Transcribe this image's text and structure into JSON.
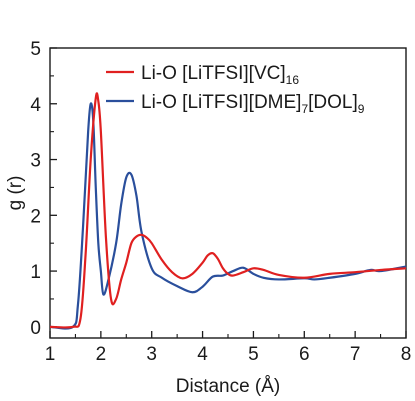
{
  "chart_data": {
    "type": "line",
    "xlabel": "Distance (Å)",
    "ylabel": "g (r)",
    "xlim": [
      1,
      8
    ],
    "ylim": [
      -0.2,
      5
    ],
    "xticks": [
      "1",
      "2",
      "3",
      "4",
      "5",
      "6",
      "7",
      "8"
    ],
    "yticks": [
      "0",
      "1",
      "2",
      "3",
      "4",
      "5"
    ],
    "grid": false,
    "legend_position": "top-right",
    "series": [
      {
        "name": "Li-O [LiTFSI][VC]16",
        "legend": {
          "main": "Li-O [LiTFSI][VC]",
          "subs": [
            "16"
          ]
        },
        "color": "#e02020",
        "x": [
          1.0,
          1.45,
          1.6,
          1.7,
          1.8,
          1.9,
          1.95,
          2.0,
          2.1,
          2.2,
          2.3,
          2.4,
          2.5,
          2.6,
          2.7,
          2.8,
          2.9,
          3.0,
          3.2,
          3.4,
          3.6,
          3.8,
          4.0,
          4.1,
          4.2,
          4.3,
          4.4,
          4.5,
          4.6,
          4.8,
          5.0,
          5.2,
          5.5,
          6.0,
          6.5,
          7.0,
          7.5,
          8.0
        ],
        "y": [
          0,
          0,
          0.15,
          1.3,
          3.0,
          4.1,
          4.05,
          3.5,
          1.6,
          0.5,
          0.5,
          0.85,
          1.15,
          1.5,
          1.62,
          1.65,
          1.6,
          1.5,
          1.2,
          0.98,
          0.87,
          0.95,
          1.15,
          1.28,
          1.32,
          1.22,
          1.05,
          0.95,
          0.92,
          0.98,
          1.05,
          1.02,
          0.93,
          0.88,
          0.95,
          0.98,
          1.02,
          1.05
        ]
      },
      {
        "name": "Li-O [LiTFSI][DME]7[DOL]9",
        "legend": {
          "main": "Li-O [LiTFSI][DME]",
          "subs": [
            "7",
            "9"
          ],
          "mid": "[DOL]"
        },
        "color": "#2a4f9c",
        "x": [
          1.0,
          1.45,
          1.55,
          1.65,
          1.75,
          1.8,
          1.85,
          1.9,
          1.95,
          2.0,
          2.05,
          2.15,
          2.3,
          2.4,
          2.5,
          2.6,
          2.7,
          2.8,
          3.0,
          3.2,
          3.5,
          3.8,
          4.0,
          4.2,
          4.4,
          4.6,
          4.8,
          5.0,
          5.2,
          5.5,
          6.0,
          6.2,
          6.5,
          7.0,
          7.3,
          7.5,
          8.0
        ],
        "y": [
          0,
          0,
          0.4,
          1.8,
          3.5,
          4.0,
          3.7,
          2.5,
          1.5,
          1.0,
          0.58,
          0.85,
          1.5,
          2.2,
          2.68,
          2.73,
          2.35,
          1.7,
          1.05,
          0.88,
          0.73,
          0.62,
          0.72,
          0.9,
          0.92,
          1.0,
          1.06,
          0.95,
          0.88,
          0.85,
          0.87,
          0.85,
          0.88,
          0.95,
          1.02,
          1.0,
          1.08
        ]
      }
    ]
  }
}
